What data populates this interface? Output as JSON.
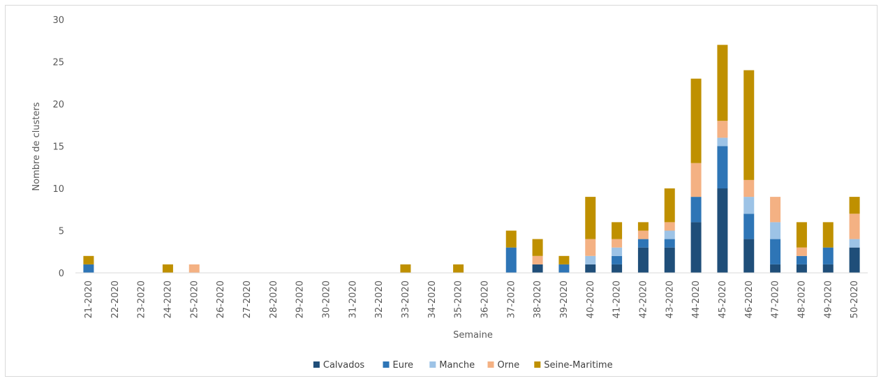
{
  "chart_data": {
    "type": "bar",
    "stacked": true,
    "title": "",
    "xlabel": "Semaine",
    "ylabel": "Nombre de clusters",
    "ylim": [
      0,
      30
    ],
    "yticks": [
      0,
      5,
      10,
      15,
      20,
      25,
      30
    ],
    "grid": false,
    "legend_position": "bottom",
    "categories": [
      "21-2020",
      "22-2020",
      "23-2020",
      "24-2020",
      "25-2020",
      "26-2020",
      "27-2020",
      "28-2020",
      "29-2020",
      "30-2020",
      "31-2020",
      "32-2020",
      "33-2020",
      "34-2020",
      "35-2020",
      "36-2020",
      "37-2020",
      "38-2020",
      "39-2020",
      "40-2020",
      "41-2020",
      "42-2020",
      "43-2020",
      "44-2020",
      "45-2020",
      "46-2020",
      "47-2020",
      "48-2020",
      "49-2020",
      "50-2020"
    ],
    "series": [
      {
        "name": "Calvados",
        "color": "#1f4e79",
        "values": [
          0,
          0,
          0,
          0,
          0,
          0,
          0,
          0,
          0,
          0,
          0,
          0,
          0,
          0,
          0,
          0,
          0,
          1,
          0,
          1,
          1,
          3,
          3,
          6,
          10,
          4,
          1,
          1,
          1,
          3
        ]
      },
      {
        "name": "Eure",
        "color": "#2e75b6",
        "values": [
          1,
          0,
          0,
          0,
          0,
          0,
          0,
          0,
          0,
          0,
          0,
          0,
          0,
          0,
          0,
          0,
          3,
          0,
          1,
          0,
          1,
          1,
          1,
          3,
          5,
          3,
          3,
          1,
          2,
          0
        ]
      },
      {
        "name": "Manche",
        "color": "#9dc3e6",
        "values": [
          0,
          0,
          0,
          0,
          0,
          0,
          0,
          0,
          0,
          0,
          0,
          0,
          0,
          0,
          0,
          0,
          0,
          0,
          0,
          1,
          1,
          0,
          1,
          0,
          1,
          2,
          2,
          0,
          0,
          1
        ]
      },
      {
        "name": "Orne",
        "color": "#f4b183",
        "values": [
          0,
          0,
          0,
          0,
          1,
          0,
          0,
          0,
          0,
          0,
          0,
          0,
          0,
          0,
          0,
          0,
          0,
          1,
          0,
          2,
          1,
          1,
          1,
          4,
          2,
          2,
          3,
          1,
          0,
          3
        ]
      },
      {
        "name": "Seine-Maritime",
        "color": "#bf9000",
        "values": [
          1,
          0,
          0,
          1,
          0,
          0,
          0,
          0,
          0,
          0,
          0,
          0,
          1,
          0,
          1,
          0,
          2,
          2,
          1,
          5,
          2,
          1,
          4,
          10,
          9,
          13,
          0,
          3,
          3,
          2
        ]
      }
    ]
  }
}
